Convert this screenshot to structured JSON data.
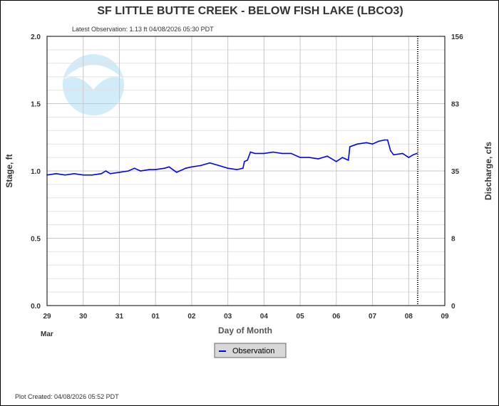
{
  "chart_data": {
    "type": "line",
    "title": "SF LITTLE BUTTE CREEK - BELOW FISH LAKE  (LBCO3)",
    "subtitle": "Latest Observation: 1.13 ft 04/08/2026 05:30 PDT",
    "xlabel": "Day of Month",
    "ylabel": "Stage, ft",
    "y2label": "Discharge, cfs",
    "x_start": "2026-03-29T00:00",
    "x_end": "2026-04-09T00:00",
    "x_ticks": [
      "29",
      "30",
      "31",
      "01",
      "02",
      "03",
      "04",
      "05",
      "06",
      "07",
      "08",
      "09"
    ],
    "x_month_label": "Mar",
    "ylim": [
      0,
      2.0
    ],
    "y_ticks": [
      "0.0",
      "0.5",
      "1.0",
      "1.5",
      "2.0"
    ],
    "y2_ticks": [
      "0",
      "8",
      "35",
      "83",
      "156"
    ],
    "grid": true,
    "legend_placement": "bottom-center",
    "latest_observation_time": "2026-04-08T06:00",
    "series": [
      {
        "name": "Observation",
        "color": "#0000ff",
        "points": [
          [
            "2026-03-29T00:00",
            0.97
          ],
          [
            "2026-03-29T06:00",
            0.98
          ],
          [
            "2026-03-29T12:00",
            0.97
          ],
          [
            "2026-03-29T18:00",
            0.98
          ],
          [
            "2026-03-30T00:00",
            0.97
          ],
          [
            "2026-03-30T06:00",
            0.97
          ],
          [
            "2026-03-30T12:00",
            0.98
          ],
          [
            "2026-03-30T15:00",
            1.0
          ],
          [
            "2026-03-30T18:00",
            0.98
          ],
          [
            "2026-03-31T00:00",
            0.99
          ],
          [
            "2026-03-31T06:00",
            1.0
          ],
          [
            "2026-03-31T10:00",
            1.02
          ],
          [
            "2026-03-31T14:00",
            1.0
          ],
          [
            "2026-03-31T20:00",
            1.01
          ],
          [
            "2026-04-01T00:00",
            1.01
          ],
          [
            "2026-04-01T06:00",
            1.02
          ],
          [
            "2026-04-01T09:00",
            1.03
          ],
          [
            "2026-04-01T14:00",
            0.99
          ],
          [
            "2026-04-01T20:00",
            1.02
          ],
          [
            "2026-04-02T00:00",
            1.03
          ],
          [
            "2026-04-02T06:00",
            1.04
          ],
          [
            "2026-04-02T12:00",
            1.06
          ],
          [
            "2026-04-02T18:00",
            1.04
          ],
          [
            "2026-04-03T00:00",
            1.02
          ],
          [
            "2026-04-03T06:00",
            1.01
          ],
          [
            "2026-04-03T10:00",
            1.02
          ],
          [
            "2026-04-03T11:00",
            1.07
          ],
          [
            "2026-04-03T13:00",
            1.08
          ],
          [
            "2026-04-03T15:00",
            1.14
          ],
          [
            "2026-04-03T18:00",
            1.13
          ],
          [
            "2026-04-04T00:00",
            1.13
          ],
          [
            "2026-04-04T06:00",
            1.14
          ],
          [
            "2026-04-04T12:00",
            1.13
          ],
          [
            "2026-04-04T18:00",
            1.13
          ],
          [
            "2026-04-05T00:00",
            1.1
          ],
          [
            "2026-04-05T06:00",
            1.1
          ],
          [
            "2026-04-05T12:00",
            1.09
          ],
          [
            "2026-04-05T18:00",
            1.11
          ],
          [
            "2026-04-06T00:00",
            1.07
          ],
          [
            "2026-04-06T04:00",
            1.1
          ],
          [
            "2026-04-06T08:00",
            1.08
          ],
          [
            "2026-04-06T09:00",
            1.18
          ],
          [
            "2026-04-06T14:00",
            1.2
          ],
          [
            "2026-04-06T20:00",
            1.21
          ],
          [
            "2026-04-07T00:00",
            1.2
          ],
          [
            "2026-04-07T04:00",
            1.22
          ],
          [
            "2026-04-07T08:00",
            1.23
          ],
          [
            "2026-04-07T10:00",
            1.23
          ],
          [
            "2026-04-07T12:00",
            1.15
          ],
          [
            "2026-04-07T14:00",
            1.12
          ],
          [
            "2026-04-07T20:00",
            1.13
          ],
          [
            "2026-04-08T00:00",
            1.1
          ],
          [
            "2026-04-08T03:00",
            1.12
          ],
          [
            "2026-04-08T05:30",
            1.13
          ]
        ]
      }
    ]
  },
  "footer": {
    "plot_created": "Plot Created: 04/08/2026 05:52 PDT"
  },
  "logo": {
    "text": "NOAA"
  }
}
